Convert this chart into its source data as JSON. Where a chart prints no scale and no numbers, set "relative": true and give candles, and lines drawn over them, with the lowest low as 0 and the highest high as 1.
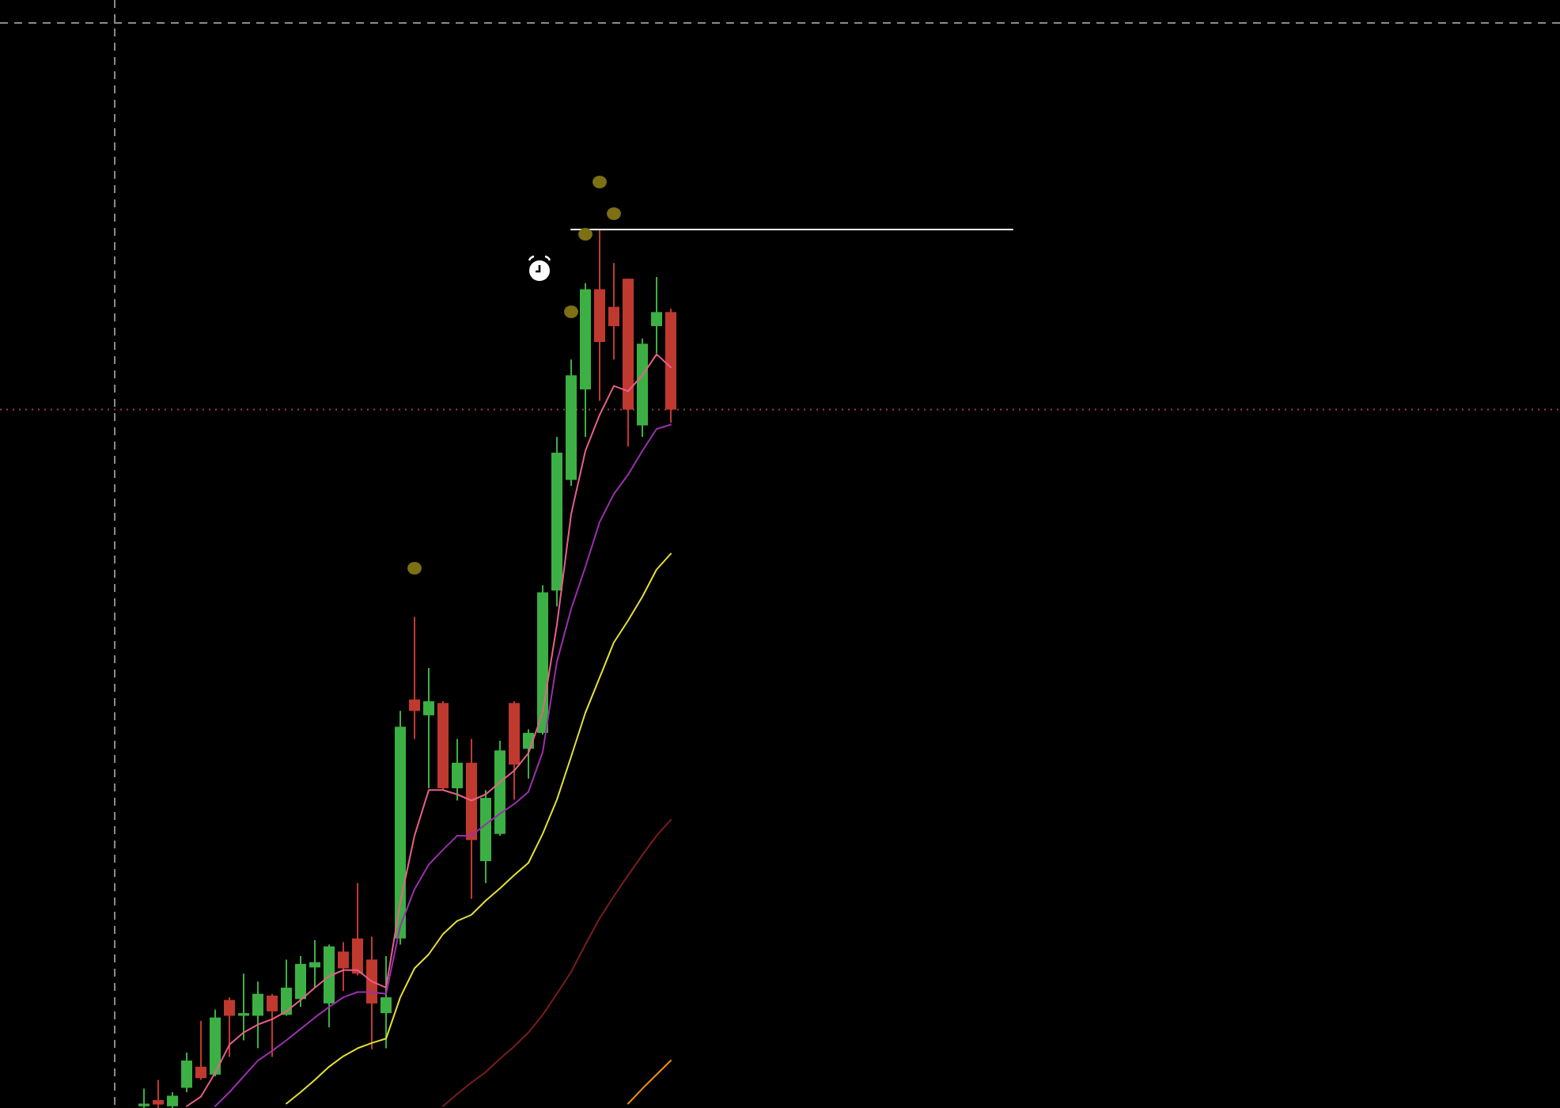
{
  "chart_data": {
    "type": "candlestick",
    "relative": true,
    "categories": [
      null,
      null,
      null,
      null,
      null,
      null,
      null,
      null,
      null,
      null,
      null,
      null,
      null,
      null,
      null,
      null,
      null,
      null,
      null,
      null,
      null,
      null,
      null,
      null,
      null,
      null,
      null,
      null,
      null,
      null,
      null,
      null,
      null,
      null,
      null,
      null,
      null,
      null,
      null,
      null,
      null,
      null,
      null,
      null,
      null,
      null,
      null,
      null,
      null,
      null,
      null,
      null,
      null,
      null,
      null,
      null,
      null,
      null,
      null,
      null,
      null,
      null
    ],
    "ohlc": [
      [
        0.002,
        0.022,
        0,
        0.005
      ],
      [
        0.009,
        0.032,
        0,
        0.004
      ],
      [
        0.002,
        0.018,
        0,
        0.014
      ],
      [
        0.023,
        0.063,
        0.018,
        0.054
      ],
      [
        0.047,
        0.099,
        0.032,
        0.034
      ],
      [
        0.038,
        0.112,
        0.036,
        0.103
      ],
      [
        0.123,
        0.126,
        0.058,
        0.105
      ],
      [
        0.105,
        0.153,
        0.077,
        0.108
      ],
      [
        0.105,
        0.144,
        0.068,
        0.13
      ],
      [
        0.128,
        0.13,
        0.058,
        0.11
      ],
      [
        0.106,
        0.169,
        0.105,
        0.137
      ],
      [
        0.124,
        0.173,
        0.115,
        0.164
      ],
      [
        0.16,
        0.191,
        0.137,
        0.166
      ],
      [
        0.119,
        0.186,
        0.092,
        0.184
      ],
      [
        0.178,
        0.189,
        0.133,
        0.159
      ],
      [
        0.193,
        0.256,
        0.151,
        0.153
      ],
      [
        0.169,
        0.195,
        0.067,
        0.119
      ],
      [
        0.108,
        0.173,
        0.068,
        0.126
      ],
      [
        0.193,
        0.452,
        0.186,
        0.434
      ],
      [
        0.465,
        0.559,
        0.42,
        0.452
      ],
      [
        0.447,
        0.501,
        0.364,
        0.463
      ],
      [
        0.461,
        0.463,
        0.362,
        0.364
      ],
      [
        0.364,
        0.42,
        0.35,
        0.393
      ],
      [
        0.393,
        0.42,
        0.238,
        0.305
      ],
      [
        0.281,
        0.362,
        0.256,
        0.353
      ],
      [
        0.312,
        0.418,
        0.31,
        0.407
      ],
      [
        0.461,
        0.463,
        0.351,
        0.391
      ],
      [
        0.409,
        0.431,
        0.375,
        0.427
      ],
      [
        0.427,
        0.595,
        0.425,
        0.587
      ],
      [
        0.589,
        0.764,
        0.571,
        0.746
      ],
      [
        0.715,
        0.852,
        0.708,
        0.834
      ],
      [
        0.818,
        0.939,
        0.764,
        0.932
      ],
      [
        0.932,
        1,
        0.805,
        0.872
      ],
      [
        0.912,
        0.962,
        0.852,
        0.89
      ],
      [
        0.944,
        0.944,
        0.753,
        0.795
      ],
      [
        0.777,
        0.876,
        0.764,
        0.87
      ],
      [
        0.89,
        0.946,
        0.859,
        0.906
      ],
      [
        0.906,
        0.91,
        0.78,
        0.795
      ],
      null,
      null,
      null,
      null,
      null,
      null,
      null,
      null,
      null,
      null,
      null,
      null,
      null,
      null,
      null,
      null,
      null,
      null,
      null,
      null,
      null,
      null,
      null,
      null
    ],
    "colors": [
      "#3cb044",
      "#c0392f",
      "#3cb044",
      "#3cb044",
      "#c0392f",
      "#3cb044",
      "#c0392f",
      "#3cb044",
      "#3cb044",
      "#c0392f",
      "#3cb044",
      "#3cb044",
      "#3cb044",
      "#3cb044",
      "#c0392f",
      "#c0392f",
      "#c0392f",
      "#3cb044",
      "#3cb044",
      "#c0392f",
      "#3cb044",
      "#c0392f",
      "#3cb044",
      "#c0392f",
      "#3cb044",
      "#3cb044",
      "#c0392f",
      "#3cb044",
      "#3cb044",
      "#3cb044",
      "#3cb044",
      "#3cb044",
      "#c0392f",
      "#c0392f",
      "#c0392f",
      "#3cb044",
      "#3cb044",
      "#c0392f",
      null,
      null,
      null,
      null,
      null,
      null,
      null,
      null,
      null,
      null,
      null,
      null,
      null,
      null,
      null,
      null,
      null,
      null,
      null,
      null,
      null,
      null,
      null,
      null
    ],
    "series": [
      {
        "type": "line",
        "color": "#e8608a",
        "values": [
          null,
          null,
          null,
          0.002,
          0.013,
          0.04,
          0.072,
          0.086,
          0.095,
          0.101,
          0.11,
          0.123,
          0.137,
          0.15,
          0.157,
          0.157,
          0.144,
          0.137,
          0.234,
          0.31,
          0.362,
          0.362,
          0.357,
          0.35,
          0.357,
          0.371,
          0.384,
          0.404,
          0.45,
          0.55,
          0.676,
          0.748,
          0.789,
          0.822,
          0.816,
          0.834,
          0.858,
          0.843,
          null,
          null,
          null,
          null,
          null,
          null,
          null,
          null,
          null,
          null,
          null,
          null,
          null,
          null,
          null,
          null,
          null,
          null,
          null,
          null,
          null,
          null,
          null,
          null
        ]
      },
      {
        "type": "line",
        "color": "#9b2fae",
        "values": [
          null,
          null,
          null,
          null,
          null,
          0.002,
          0.018,
          0.036,
          0.054,
          0.065,
          0.077,
          0.09,
          0.103,
          0.115,
          0.126,
          0.132,
          0.132,
          0.13,
          0.207,
          0.249,
          0.277,
          0.294,
          0.31,
          0.31,
          0.323,
          0.335,
          0.346,
          0.36,
          0.405,
          0.508,
          0.568,
          0.616,
          0.667,
          0.699,
          0.721,
          0.748,
          0.773,
          0.778,
          null,
          null,
          null,
          null,
          null,
          null,
          null,
          null,
          null,
          null,
          null,
          null,
          null,
          null,
          null,
          null,
          null,
          null,
          null,
          null,
          null,
          null,
          null,
          null
        ]
      },
      {
        "type": "line",
        "color": "#e6e033",
        "values": [
          null,
          null,
          null,
          null,
          null,
          null,
          null,
          null,
          null,
          null,
          0.005,
          0.018,
          0.032,
          0.047,
          0.059,
          0.068,
          0.074,
          0.079,
          0.126,
          0.159,
          0.175,
          0.198,
          0.213,
          0.22,
          0.236,
          0.25,
          0.265,
          0.279,
          0.312,
          0.351,
          0.4,
          0.45,
          0.49,
          0.53,
          0.555,
          0.582,
          0.613,
          0.631,
          null,
          null,
          null,
          null,
          null,
          null,
          null,
          null,
          null,
          null,
          null,
          null,
          null,
          null,
          null,
          null,
          null,
          null,
          null,
          null,
          null,
          null,
          null,
          null
        ]
      },
      {
        "type": "line",
        "color": "#7b1c1c",
        "values": [
          null,
          null,
          null,
          null,
          null,
          null,
          null,
          null,
          null,
          null,
          null,
          null,
          null,
          null,
          null,
          null,
          null,
          null,
          null,
          null,
          null,
          0.002,
          0.016,
          0.029,
          0.041,
          0.056,
          0.07,
          0.086,
          0.106,
          0.13,
          0.155,
          0.186,
          0.216,
          0.241,
          0.265,
          0.288,
          0.31,
          0.328,
          null,
          null,
          null,
          null,
          null,
          null,
          null,
          null,
          null,
          null,
          null,
          null,
          null,
          null,
          null,
          null,
          null,
          null,
          null,
          null,
          null,
          null,
          null,
          null
        ]
      },
      {
        "type": "line",
        "color": "#f0900c",
        "values": [
          null,
          null,
          null,
          null,
          null,
          null,
          null,
          null,
          null,
          null,
          null,
          null,
          null,
          null,
          null,
          null,
          null,
          null,
          null,
          null,
          null,
          null,
          null,
          null,
          null,
          null,
          null,
          null,
          null,
          null,
          null,
          null,
          null,
          null,
          0.005,
          0.022,
          0.038,
          0.054,
          null,
          null,
          null,
          null,
          null,
          null,
          null,
          null,
          null,
          null,
          null,
          null,
          null,
          null,
          null,
          null,
          null,
          null,
          null,
          null,
          null,
          null,
          null,
          null
        ]
      },
      {
        "type": "line",
        "color": "#ffffff",
        "values": [
          null,
          null,
          null,
          null,
          null,
          null,
          null,
          null,
          null,
          null,
          null,
          null,
          null,
          null,
          null,
          null,
          null,
          null,
          null,
          null,
          null,
          null,
          null,
          null,
          null,
          null,
          null,
          null,
          null,
          null,
          1,
          1,
          1,
          1,
          1,
          1,
          1,
          1,
          1,
          1,
          1,
          1,
          1,
          1,
          1,
          1,
          1,
          1,
          1,
          1,
          1,
          1,
          1,
          1,
          1,
          1,
          1,
          1,
          1,
          1,
          1,
          1
        ]
      }
    ],
    "ref_lines": [
      {
        "axis": "y",
        "value": 0.795,
        "color": "#a63a4a",
        "line_style": "dotted"
      }
    ]
  }
}
